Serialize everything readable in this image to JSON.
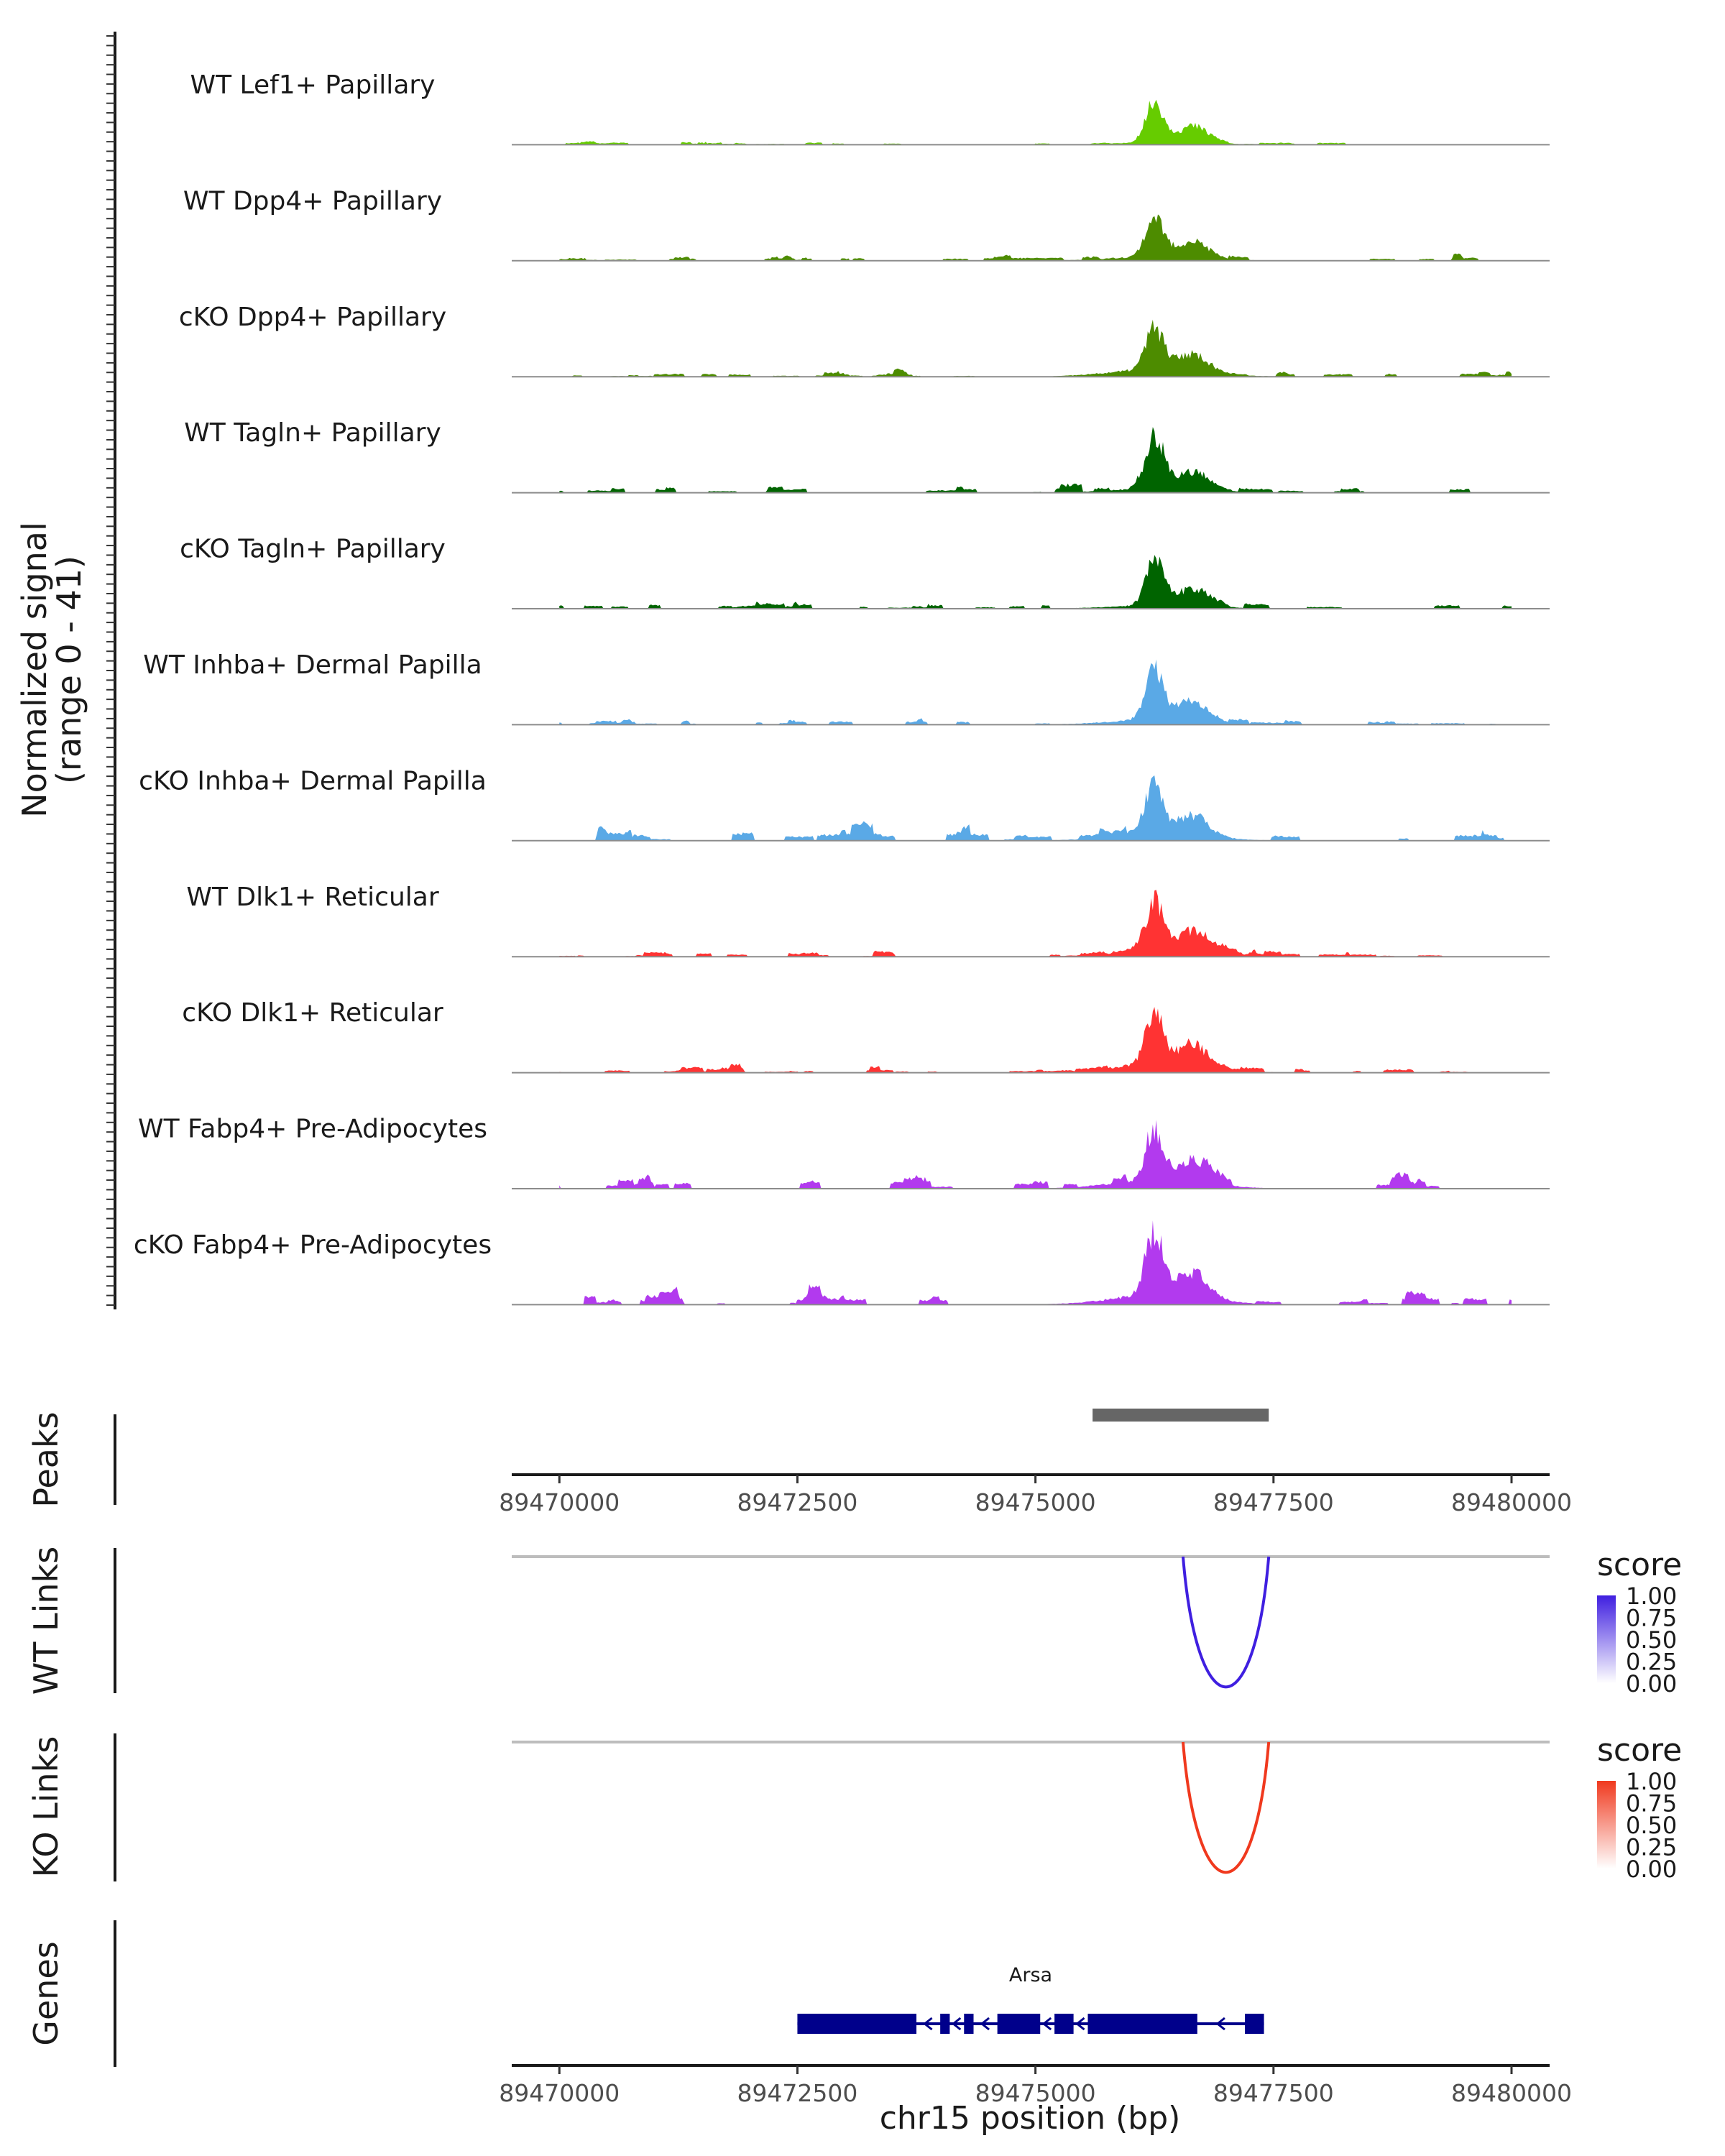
{
  "chart_data": {
    "type": "area",
    "region": "chr15",
    "x_range": [
      89469500,
      89480400
    ],
    "y_range": [
      0,
      41
    ],
    "ylabel_line1": "Normalized signal",
    "ylabel_line2": "(range 0 - 41)",
    "xlabel": "chr15 position (bp)",
    "x_ticks": [
      "89470000",
      "89472500",
      "89475000",
      "89477500",
      "89480000"
    ],
    "x_tick_values": [
      89470000,
      89472500,
      89475000,
      89477500,
      89480000
    ],
    "tracks": [
      {
        "name": "WT Lef1+ Papillary",
        "color": "#66CC00",
        "peak": 38,
        "noise": 0.6,
        "base": 2,
        "seed": 11
      },
      {
        "name": "WT Dpp4+ Papillary",
        "color": "#4D8C00",
        "peak": 38,
        "noise": 1.0,
        "base": 4,
        "seed": 23
      },
      {
        "name": "cKO Dpp4+ Papillary",
        "color": "#4D8C00",
        "peak": 40,
        "noise": 1.0,
        "base": 7,
        "seed": 37
      },
      {
        "name": "WT Tagln+ Papillary",
        "color": "#006400",
        "peak": 37,
        "noise": 1.3,
        "base": 4,
        "seed": 41
      },
      {
        "name": "cKO Tagln+ Papillary",
        "color": "#006400",
        "peak": 41,
        "noise": 1.6,
        "base": 3,
        "seed": 53
      },
      {
        "name": "WT Inhba+ Dermal Papilla",
        "color": "#5AA9E6",
        "peak": 48,
        "noise": 1.3,
        "base": 5,
        "seed": 67
      },
      {
        "name": "cKO Inhba+ Dermal Papilla",
        "color": "#5AA9E6",
        "peak": 48,
        "noise": 2.6,
        "base": 6,
        "seed": 71
      },
      {
        "name": "WT Dlk1+ Reticular",
        "color": "#FF3333",
        "peak": 47,
        "noise": 1.1,
        "base": 6,
        "seed": 83
      },
      {
        "name": "cKO Dlk1+ Reticular",
        "color": "#FF3333",
        "peak": 50,
        "noise": 1.4,
        "base": 8,
        "seed": 97
      },
      {
        "name": "WT Fabp4+ Pre-Adipocytes",
        "color": "#B23AEE",
        "peak": 45,
        "noise": 2.2,
        "base": 8,
        "seed": 101
      },
      {
        "name": "cKO Fabp4+ Pre-Adipocytes",
        "color": "#B23AEE",
        "peak": 58,
        "noise": 2.2,
        "base": 9,
        "seed": 113
      }
    ],
    "peaks_label": "Peaks",
    "peaks": [
      {
        "start": 89475600,
        "end": 89477450
      }
    ],
    "links": [
      {
        "label": "WT Links",
        "start": 89476550,
        "end": 89477450,
        "score": 1.0,
        "color_high": "#3F1FE0",
        "color_low": "#FFFFFF"
      },
      {
        "label": "KO Links",
        "start": 89476550,
        "end": 89477450,
        "score": 1.0,
        "color_high": "#F0391E",
        "color_low": "#FFFFFF"
      }
    ],
    "legend_title": "score",
    "legend_ticks": [
      "1.00",
      "0.75",
      "0.50",
      "0.25",
      "0.00"
    ],
    "genes_label": "Genes",
    "gene": {
      "name": "Arsa",
      "start": 89472500,
      "end": 89477400,
      "strand": "-",
      "color": "#00008B",
      "exons": [
        [
          89472500,
          89473750
        ],
        [
          89474000,
          89474100
        ],
        [
          89474250,
          89474350
        ],
        [
          89474600,
          89475050
        ],
        [
          89475200,
          89475400
        ],
        [
          89475550,
          89476700
        ],
        [
          89477200,
          89477400
        ]
      ]
    }
  }
}
